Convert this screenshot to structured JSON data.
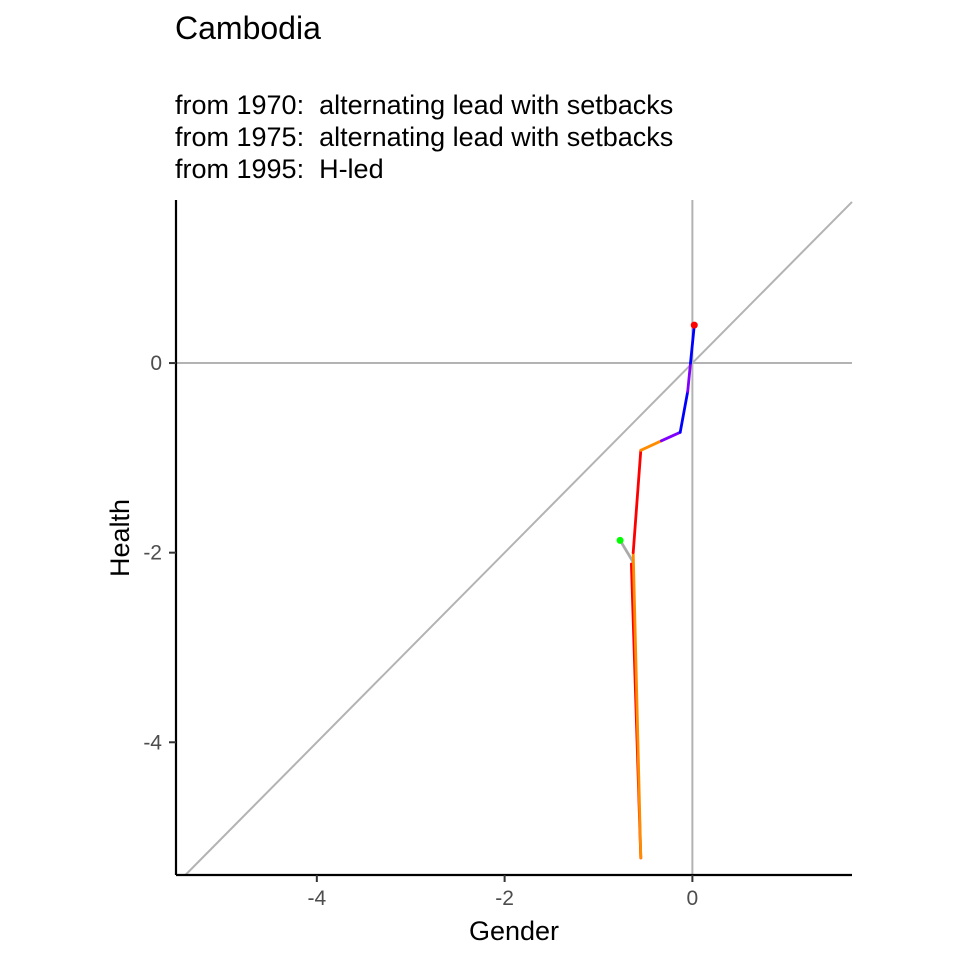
{
  "chart_data": {
    "type": "line",
    "title": "Cambodia",
    "subtitle_lines": [
      "from 1970:  alternating lead with setbacks",
      "from 1975:  alternating lead with setbacks",
      "from 1995:  H-led"
    ],
    "xlabel": "Gender",
    "ylabel": "Health",
    "xlim": [
      -5.5,
      1.7
    ],
    "ylim": [
      -5.4,
      1.72
    ],
    "x_ticks": [
      -4,
      -2,
      0
    ],
    "y_ticks": [
      -4,
      -2,
      0
    ],
    "x_tick_labels": [
      "-4",
      "-2",
      "0"
    ],
    "y_tick_labels": [
      "-4",
      "-2",
      "0"
    ],
    "grid": false,
    "reference_lines": {
      "diagonal": "y = x",
      "horizontal": 0,
      "vertical": 0,
      "color": "#b3b3b3"
    },
    "segments": [
      {
        "color": "#aaaaaa",
        "points": [
          [
            -0.77,
            -1.87
          ],
          [
            -0.63,
            -2.1
          ]
        ]
      },
      {
        "color": "#ff0000",
        "points": [
          [
            -0.65,
            -2.12
          ],
          [
            -0.55,
            -5.22
          ]
        ]
      },
      {
        "color": "#ff8c00",
        "points": [
          [
            -0.55,
            -5.22
          ],
          [
            -0.63,
            -2.0
          ]
        ]
      },
      {
        "color": "#ff0000",
        "points": [
          [
            -0.63,
            -2.0
          ],
          [
            -0.55,
            -0.92
          ]
        ]
      },
      {
        "color": "#ff8c00",
        "points": [
          [
            -0.55,
            -0.92
          ],
          [
            -0.33,
            -0.82
          ]
        ]
      },
      {
        "color": "#8000ff",
        "points": [
          [
            -0.33,
            -0.82
          ],
          [
            -0.13,
            -0.73
          ]
        ]
      },
      {
        "color": "#0000ff",
        "points": [
          [
            -0.13,
            -0.73
          ],
          [
            -0.05,
            -0.3
          ]
        ]
      },
      {
        "color": "#8000ff",
        "points": [
          [
            -0.05,
            -0.3
          ],
          [
            -0.02,
            0.0
          ]
        ]
      },
      {
        "color": "#0000ff",
        "points": [
          [
            -0.02,
            0.0
          ],
          [
            0.02,
            0.4
          ]
        ]
      }
    ],
    "start_point": {
      "x": -0.77,
      "y": -1.87,
      "color": "#00ff00"
    },
    "end_point": {
      "x": 0.02,
      "y": 0.4,
      "color": "#ff0000"
    }
  }
}
